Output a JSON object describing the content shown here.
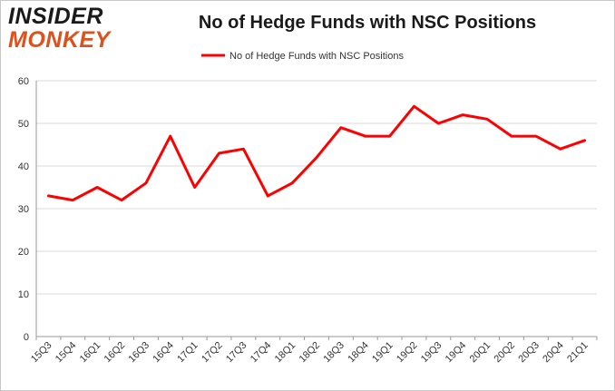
{
  "logo": {
    "line1": "INSIDER",
    "line2": "MONKEY"
  },
  "colors": {
    "series": "#ff0000",
    "grid": "#d9d9d9",
    "axis": "#999999",
    "logo_accent": "#e0501b"
  },
  "chart_data": {
    "type": "line",
    "title": "No of Hedge Funds with NSC Positions",
    "xlabel": "",
    "ylabel": "",
    "categories": [
      "15Q3",
      "15Q4",
      "16Q1",
      "16Q2",
      "16Q3",
      "16Q4",
      "17Q1",
      "17Q2",
      "17Q3",
      "17Q4",
      "18Q1",
      "18Q2",
      "18Q3",
      "18Q4",
      "19Q1",
      "19Q2",
      "19Q3",
      "19Q4",
      "20Q1",
      "20Q2",
      "20Q3",
      "20Q4",
      "21Q1"
    ],
    "series": [
      {
        "name": "No of Hedge Funds with NSC Positions",
        "values": [
          33,
          32,
          35,
          32,
          36,
          47,
          35,
          43,
          44,
          33,
          36,
          42,
          49,
          47,
          47,
          54,
          50,
          52,
          51,
          47,
          47,
          44,
          46
        ]
      }
    ],
    "ylim": [
      0,
      60
    ],
    "yticks": [
      0,
      10,
      20,
      30,
      40,
      50,
      60
    ],
    "grid": true,
    "legend_position": "top-center"
  }
}
